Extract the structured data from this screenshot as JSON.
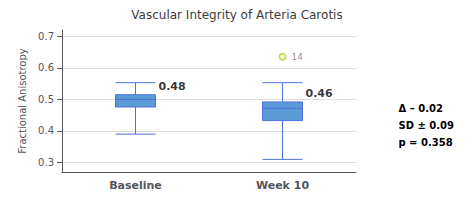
{
  "chart_data": {
    "type": "box",
    "title": "Vascular Integrity of Arteria Carotis",
    "ylabel": "Fractional Anisotropy",
    "categories": [
      "Baseline",
      "Week 10"
    ],
    "boxes": [
      {
        "q1": 0.476,
        "median": 0.5,
        "q3": 0.515,
        "whisker_low": 0.39,
        "whisker_high": 0.553,
        "fliers": [],
        "flier_labels": []
      },
      {
        "q1": 0.433,
        "median": 0.472,
        "q3": 0.492,
        "whisker_low": 0.31,
        "whisker_high": 0.553,
        "fliers": [
          0.635
        ],
        "flier_labels": [
          "14"
        ]
      }
    ],
    "annotations": [
      "0.48",
      "0.46"
    ],
    "stats_text": "Δ – 0.02\nSD ± 0.09\np = 0.358",
    "color": "#5b9bd5",
    "ylim": [
      0.27,
      0.72
    ],
    "yticks": [
      0.3,
      0.4,
      0.5,
      0.6,
      0.7
    ],
    "grid": true
  }
}
